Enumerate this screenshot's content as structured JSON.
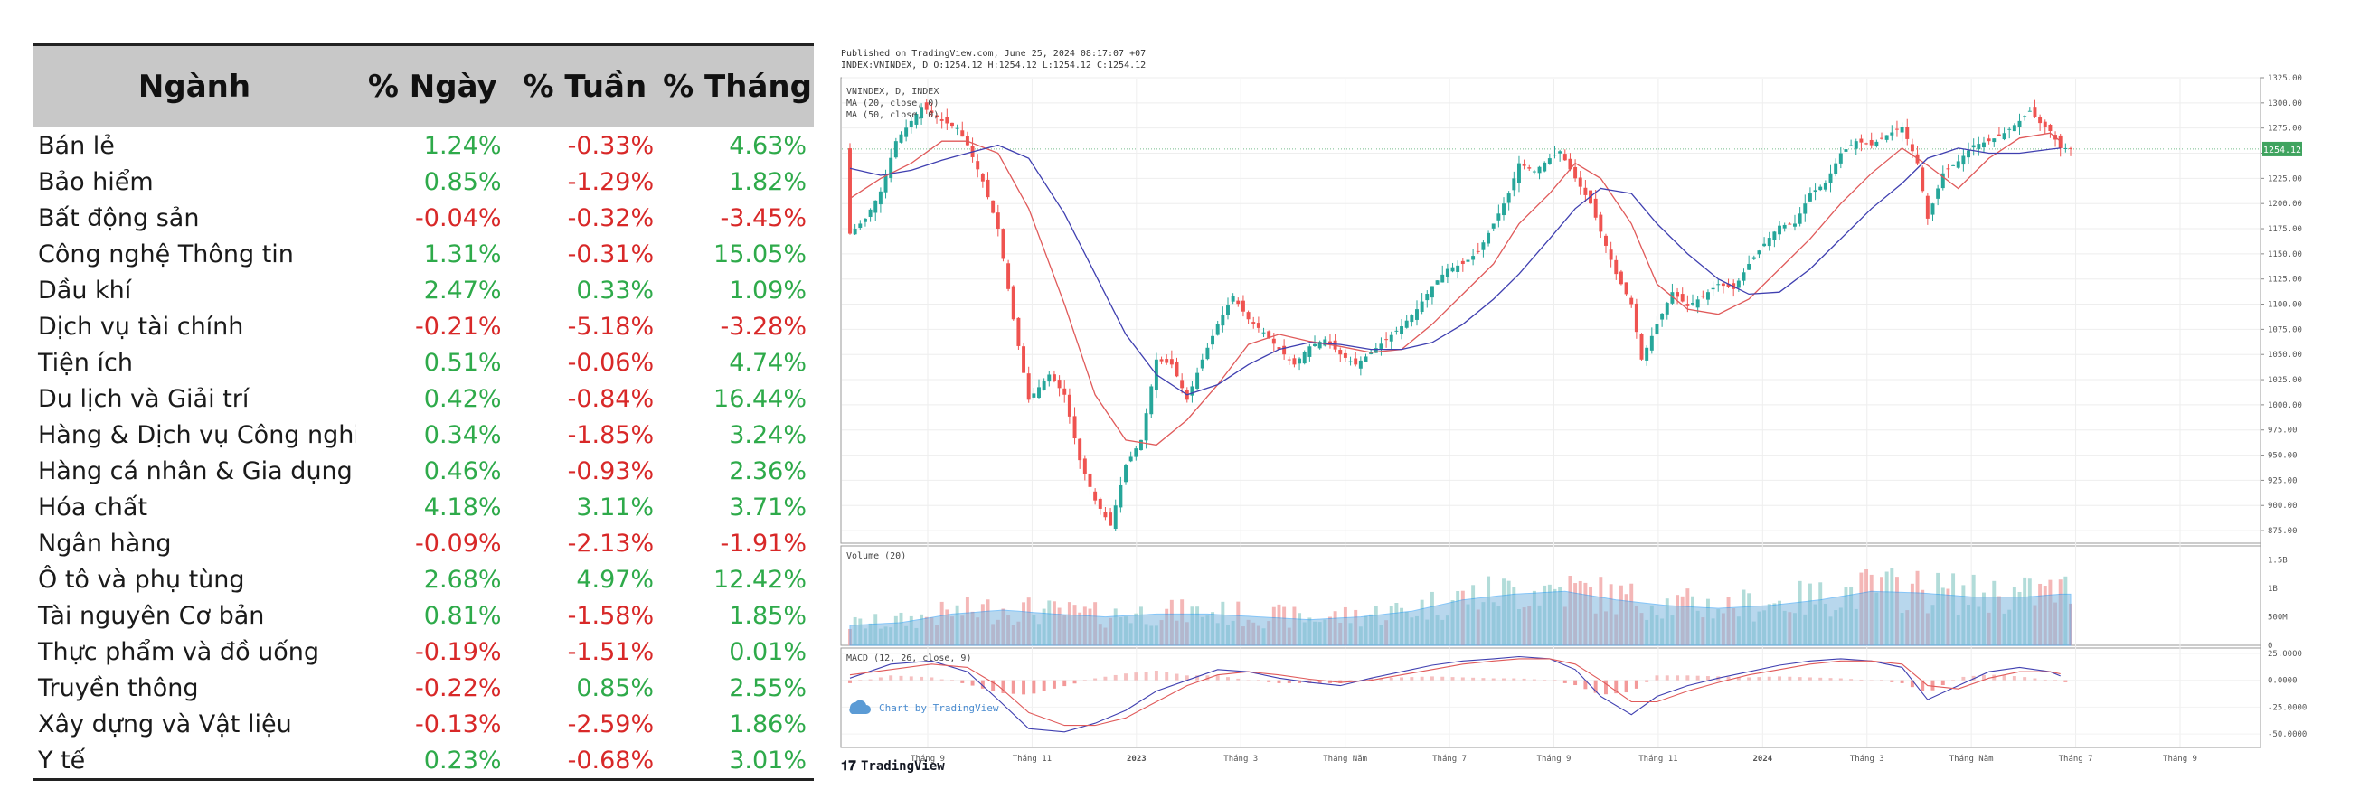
{
  "table": {
    "headers": {
      "sector": "Ngành",
      "day": "% Ngày",
      "week": "% Tuần",
      "month": "% Tháng"
    },
    "rows": [
      {
        "sector": "Bán lẻ",
        "day": "1.24%",
        "week": "-0.33%",
        "month": "4.63%"
      },
      {
        "sector": "Bảo hiểm",
        "day": "0.85%",
        "week": "-1.29%",
        "month": "1.82%"
      },
      {
        "sector": "Bất động sản",
        "day": "-0.04%",
        "week": "-0.32%",
        "month": "-3.45%"
      },
      {
        "sector": "Công nghệ Thông tin",
        "day": "1.31%",
        "week": "-0.31%",
        "month": "15.05%"
      },
      {
        "sector": "Dầu khí",
        "day": "2.47%",
        "week": "0.33%",
        "month": "1.09%"
      },
      {
        "sector": "Dịch vụ tài chính",
        "day": "-0.21%",
        "week": "-5.18%",
        "month": "-3.28%"
      },
      {
        "sector": "Tiện ích",
        "day": "0.51%",
        "week": "-0.06%",
        "month": "4.74%"
      },
      {
        "sector": "Du lịch và Giải trí",
        "day": "0.42%",
        "week": "-0.84%",
        "month": "16.44%"
      },
      {
        "sector": "Hàng & Dịch vụ Công nghiệp",
        "day": "0.34%",
        "week": "-1.85%",
        "month": "3.24%"
      },
      {
        "sector": "Hàng cá nhân & Gia dụng",
        "day": "0.46%",
        "week": "-0.93%",
        "month": "2.36%"
      },
      {
        "sector": "Hóa chất",
        "day": "4.18%",
        "week": "3.11%",
        "month": "3.71%"
      },
      {
        "sector": "Ngân hàng",
        "day": "-0.09%",
        "week": "-2.13%",
        "month": "-1.91%"
      },
      {
        "sector": "Ô tô và phụ tùng",
        "day": "2.68%",
        "week": "4.97%",
        "month": "12.42%"
      },
      {
        "sector": "Tài nguyên Cơ bản",
        "day": "0.81%",
        "week": "-1.58%",
        "month": "1.85%"
      },
      {
        "sector": "Thực phẩm và đồ uống",
        "day": "-0.19%",
        "week": "-1.51%",
        "month": "0.01%"
      },
      {
        "sector": "Truyền thông",
        "day": "-0.22%",
        "week": "0.85%",
        "month": "2.55%"
      },
      {
        "sector": "Xây dựng và Vật liệu",
        "day": "-0.13%",
        "week": "-2.59%",
        "month": "1.86%"
      },
      {
        "sector": "Y tế",
        "day": "0.23%",
        "week": "-0.68%",
        "month": "3.01%"
      }
    ],
    "colors": {
      "positive": "#2eaa4a",
      "negative": "#d82828",
      "header_bg": "#c8c8c8"
    }
  },
  "chart": {
    "published": "Published on TradingView.com, June 25, 2024 08:17:07 +07",
    "ohlc_line": "INDEX:VNINDEX, D O:1254.12 H:1254.12 L:1254.12 C:1254.12",
    "legend": [
      "VNINDEX, D, INDEX",
      "MA (20, close, 0)",
      "MA (50, close, 0)"
    ],
    "volume_label": "Volume (20)",
    "macd_label": "MACD (12, 26, close, 9)",
    "chart_by": "Chart by TradingView",
    "brand": "TradingView",
    "last_price_label": "1254.12",
    "colors": {
      "up": "#26a69a",
      "down": "#ef5350",
      "ma20": "#e05a5a",
      "ma50": "#3f3fb0",
      "price_tag": "#3fa35f",
      "volume": "#7fb8e0",
      "volume_ma": "#2196f3"
    }
  },
  "chart_data": {
    "type": "candlestick",
    "title": "",
    "symbol": "VNINDEX",
    "interval": "D",
    "x_tick_labels": [
      "Tháng 9",
      "Tháng 11",
      "2023",
      "Tháng 3",
      "Tháng Năm",
      "Tháng 7",
      "Tháng 9",
      "Tháng 11",
      "2024",
      "Tháng 3",
      "Tháng Năm",
      "Tháng 7",
      "Tháng 9"
    ],
    "x_tick_bold": [
      false,
      false,
      true,
      false,
      false,
      false,
      false,
      false,
      true,
      false,
      false,
      false,
      false
    ],
    "price_axis": {
      "ylim": [
        862.5,
        1325
      ],
      "ticks": [
        "1325.00",
        "1300.00",
        "1275.00",
        "1250.00",
        "1225.00",
        "1200.00",
        "1175.00",
        "1150.00",
        "1125.00",
        "1100.00",
        "1075.00",
        "1050.00",
        "1025.00",
        "1000.00",
        "975.00",
        "950.00",
        "925.00",
        "900.00",
        "875.00"
      ]
    },
    "volume_axis": {
      "ylim": [
        0,
        1.75
      ],
      "unit": "B",
      "ticks": [
        "1.5B",
        "1B",
        "500M",
        "0"
      ]
    },
    "macd_axis": {
      "ylim": [
        -62.5,
        30
      ],
      "ticks": [
        "25.0000",
        "0.0000",
        "-25.0000",
        "-50.0000"
      ]
    },
    "price_path": [
      [
        0,
        1170
      ],
      [
        3,
        1185
      ],
      [
        6,
        1212
      ],
      [
        9,
        1262
      ],
      [
        12,
        1282
      ],
      [
        14,
        1296
      ],
      [
        16,
        1290
      ],
      [
        18,
        1282
      ],
      [
        21,
        1275
      ],
      [
        23,
        1258
      ],
      [
        26,
        1222
      ],
      [
        29,
        1175
      ],
      [
        32,
        1085
      ],
      [
        35,
        1005
      ],
      [
        39,
        1030
      ],
      [
        42,
        1010
      ],
      [
        45,
        945
      ],
      [
        48,
        905
      ],
      [
        51,
        880
      ],
      [
        54,
        940
      ],
      [
        57,
        965
      ],
      [
        60,
        1045
      ],
      [
        63,
        1040
      ],
      [
        66,
        1005
      ],
      [
        69,
        1045
      ],
      [
        72,
        1080
      ],
      [
        75,
        1108
      ],
      [
        78,
        1085
      ],
      [
        81,
        1072
      ],
      [
        84,
        1055
      ],
      [
        87,
        1040
      ],
      [
        90,
        1058
      ],
      [
        93,
        1065
      ],
      [
        96,
        1050
      ],
      [
        99,
        1040
      ],
      [
        102,
        1052
      ],
      [
        105,
        1065
      ],
      [
        108,
        1078
      ],
      [
        111,
        1095
      ],
      [
        114,
        1118
      ],
      [
        117,
        1135
      ],
      [
        120,
        1140
      ],
      [
        123,
        1152
      ],
      [
        126,
        1180
      ],
      [
        129,
        1210
      ],
      [
        131,
        1240
      ],
      [
        134,
        1232
      ],
      [
        137,
        1245
      ],
      [
        139,
        1252
      ],
      [
        142,
        1225
      ],
      [
        145,
        1200
      ],
      [
        147,
        1172
      ],
      [
        150,
        1130
      ],
      [
        153,
        1100
      ],
      [
        155,
        1045
      ],
      [
        158,
        1080
      ],
      [
        161,
        1112
      ],
      [
        164,
        1098
      ],
      [
        167,
        1108
      ],
      [
        170,
        1120
      ],
      [
        173,
        1115
      ],
      [
        176,
        1140
      ],
      [
        179,
        1160
      ],
      [
        182,
        1178
      ],
      [
        185,
        1180
      ],
      [
        188,
        1210
      ],
      [
        191,
        1220
      ],
      [
        194,
        1250
      ],
      [
        197,
        1262
      ],
      [
        200,
        1258
      ],
      [
        203,
        1268
      ],
      [
        206,
        1276
      ],
      [
        209,
        1240
      ],
      [
        211,
        1185
      ],
      [
        214,
        1230
      ],
      [
        217,
        1242
      ],
      [
        220,
        1258
      ],
      [
        223,
        1262
      ],
      [
        226,
        1270
      ],
      [
        229,
        1282
      ],
      [
        231,
        1292
      ],
      [
        233,
        1280
      ],
      [
        235,
        1272
      ],
      [
        237,
        1255
      ]
    ],
    "ma20_path": [
      [
        0,
        1205
      ],
      [
        6,
        1225
      ],
      [
        12,
        1240
      ],
      [
        18,
        1262
      ],
      [
        23,
        1262
      ],
      [
        29,
        1250
      ],
      [
        35,
        1195
      ],
      [
        42,
        1100
      ],
      [
        48,
        1010
      ],
      [
        54,
        965
      ],
      [
        60,
        960
      ],
      [
        66,
        985
      ],
      [
        72,
        1020
      ],
      [
        78,
        1060
      ],
      [
        84,
        1070
      ],
      [
        90,
        1063
      ],
      [
        96,
        1058
      ],
      [
        102,
        1052
      ],
      [
        108,
        1055
      ],
      [
        114,
        1080
      ],
      [
        120,
        1110
      ],
      [
        126,
        1140
      ],
      [
        131,
        1180
      ],
      [
        137,
        1210
      ],
      [
        142,
        1240
      ],
      [
        147,
        1225
      ],
      [
        153,
        1180
      ],
      [
        158,
        1120
      ],
      [
        164,
        1095
      ],
      [
        170,
        1090
      ],
      [
        176,
        1105
      ],
      [
        182,
        1135
      ],
      [
        188,
        1165
      ],
      [
        194,
        1200
      ],
      [
        200,
        1230
      ],
      [
        206,
        1255
      ],
      [
        211,
        1238
      ],
      [
        217,
        1215
      ],
      [
        223,
        1245
      ],
      [
        229,
        1265
      ],
      [
        235,
        1270
      ],
      [
        237,
        1262
      ]
    ],
    "ma50_path": [
      [
        0,
        1235
      ],
      [
        6,
        1228
      ],
      [
        12,
        1233
      ],
      [
        18,
        1243
      ],
      [
        23,
        1250
      ],
      [
        29,
        1258
      ],
      [
        35,
        1245
      ],
      [
        42,
        1190
      ],
      [
        48,
        1130
      ],
      [
        54,
        1070
      ],
      [
        60,
        1030
      ],
      [
        66,
        1010
      ],
      [
        72,
        1020
      ],
      [
        78,
        1040
      ],
      [
        84,
        1055
      ],
      [
        90,
        1062
      ],
      [
        96,
        1060
      ],
      [
        102,
        1055
      ],
      [
        108,
        1055
      ],
      [
        114,
        1062
      ],
      [
        120,
        1080
      ],
      [
        126,
        1105
      ],
      [
        131,
        1130
      ],
      [
        137,
        1165
      ],
      [
        142,
        1195
      ],
      [
        147,
        1215
      ],
      [
        153,
        1210
      ],
      [
        158,
        1180
      ],
      [
        164,
        1150
      ],
      [
        170,
        1125
      ],
      [
        176,
        1110
      ],
      [
        182,
        1112
      ],
      [
        188,
        1135
      ],
      [
        194,
        1165
      ],
      [
        200,
        1195
      ],
      [
        206,
        1220
      ],
      [
        211,
        1245
      ],
      [
        217,
        1255
      ],
      [
        223,
        1250
      ],
      [
        229,
        1250
      ],
      [
        235,
        1254
      ],
      [
        237,
        1255
      ]
    ],
    "last_price": 1254.12,
    "volume_path": [
      [
        0,
        0.35
      ],
      [
        10,
        0.4
      ],
      [
        20,
        0.55
      ],
      [
        30,
        0.62
      ],
      [
        40,
        0.55
      ],
      [
        50,
        0.5
      ],
      [
        60,
        0.55
      ],
      [
        70,
        0.55
      ],
      [
        80,
        0.5
      ],
      [
        90,
        0.45
      ],
      [
        100,
        0.5
      ],
      [
        110,
        0.6
      ],
      [
        120,
        0.8
      ],
      [
        130,
        0.9
      ],
      [
        140,
        0.95
      ],
      [
        150,
        0.8
      ],
      [
        160,
        0.7
      ],
      [
        170,
        0.65
      ],
      [
        180,
        0.7
      ],
      [
        190,
        0.8
      ],
      [
        200,
        0.95
      ],
      [
        210,
        0.92
      ],
      [
        220,
        0.85
      ],
      [
        230,
        0.85
      ],
      [
        237,
        0.9
      ]
    ],
    "macd_path": [
      [
        0,
        2
      ],
      [
        8,
        15
      ],
      [
        16,
        18
      ],
      [
        23,
        8
      ],
      [
        29,
        -18
      ],
      [
        35,
        -45
      ],
      [
        42,
        -48
      ],
      [
        48,
        -40
      ],
      [
        54,
        -28
      ],
      [
        60,
        -10
      ],
      [
        66,
        0
      ],
      [
        72,
        10
      ],
      [
        78,
        8
      ],
      [
        84,
        2
      ],
      [
        90,
        -2
      ],
      [
        96,
        -5
      ],
      [
        102,
        2
      ],
      [
        108,
        8
      ],
      [
        114,
        14
      ],
      [
        120,
        18
      ],
      [
        126,
        20
      ],
      [
        131,
        22
      ],
      [
        137,
        20
      ],
      [
        142,
        10
      ],
      [
        147,
        -15
      ],
      [
        153,
        -32
      ],
      [
        158,
        -15
      ],
      [
        164,
        -5
      ],
      [
        170,
        2
      ],
      [
        176,
        8
      ],
      [
        182,
        14
      ],
      [
        188,
        18
      ],
      [
        194,
        20
      ],
      [
        200,
        18
      ],
      [
        206,
        12
      ],
      [
        211,
        -18
      ],
      [
        217,
        -5
      ],
      [
        223,
        8
      ],
      [
        229,
        12
      ],
      [
        235,
        8
      ],
      [
        237,
        4
      ]
    ],
    "signal_path": [
      [
        0,
        5
      ],
      [
        8,
        10
      ],
      [
        16,
        15
      ],
      [
        23,
        12
      ],
      [
        29,
        -5
      ],
      [
        35,
        -30
      ],
      [
        42,
        -42
      ],
      [
        48,
        -42
      ],
      [
        54,
        -35
      ],
      [
        60,
        -20
      ],
      [
        66,
        -5
      ],
      [
        72,
        5
      ],
      [
        78,
        8
      ],
      [
        84,
        5
      ],
      [
        90,
        1
      ],
      [
        96,
        -2
      ],
      [
        102,
        0
      ],
      [
        108,
        5
      ],
      [
        114,
        10
      ],
      [
        120,
        15
      ],
      [
        126,
        18
      ],
      [
        131,
        20
      ],
      [
        137,
        20
      ],
      [
        142,
        15
      ],
      [
        147,
        0
      ],
      [
        153,
        -20
      ],
      [
        158,
        -20
      ],
      [
        164,
        -10
      ],
      [
        170,
        -2
      ],
      [
        176,
        5
      ],
      [
        182,
        10
      ],
      [
        188,
        15
      ],
      [
        194,
        18
      ],
      [
        200,
        18
      ],
      [
        206,
        15
      ],
      [
        211,
        -5
      ],
      [
        217,
        -8
      ],
      [
        223,
        2
      ],
      [
        229,
        8
      ],
      [
        235,
        8
      ],
      [
        237,
        6
      ]
    ],
    "total_bars": 240
  }
}
